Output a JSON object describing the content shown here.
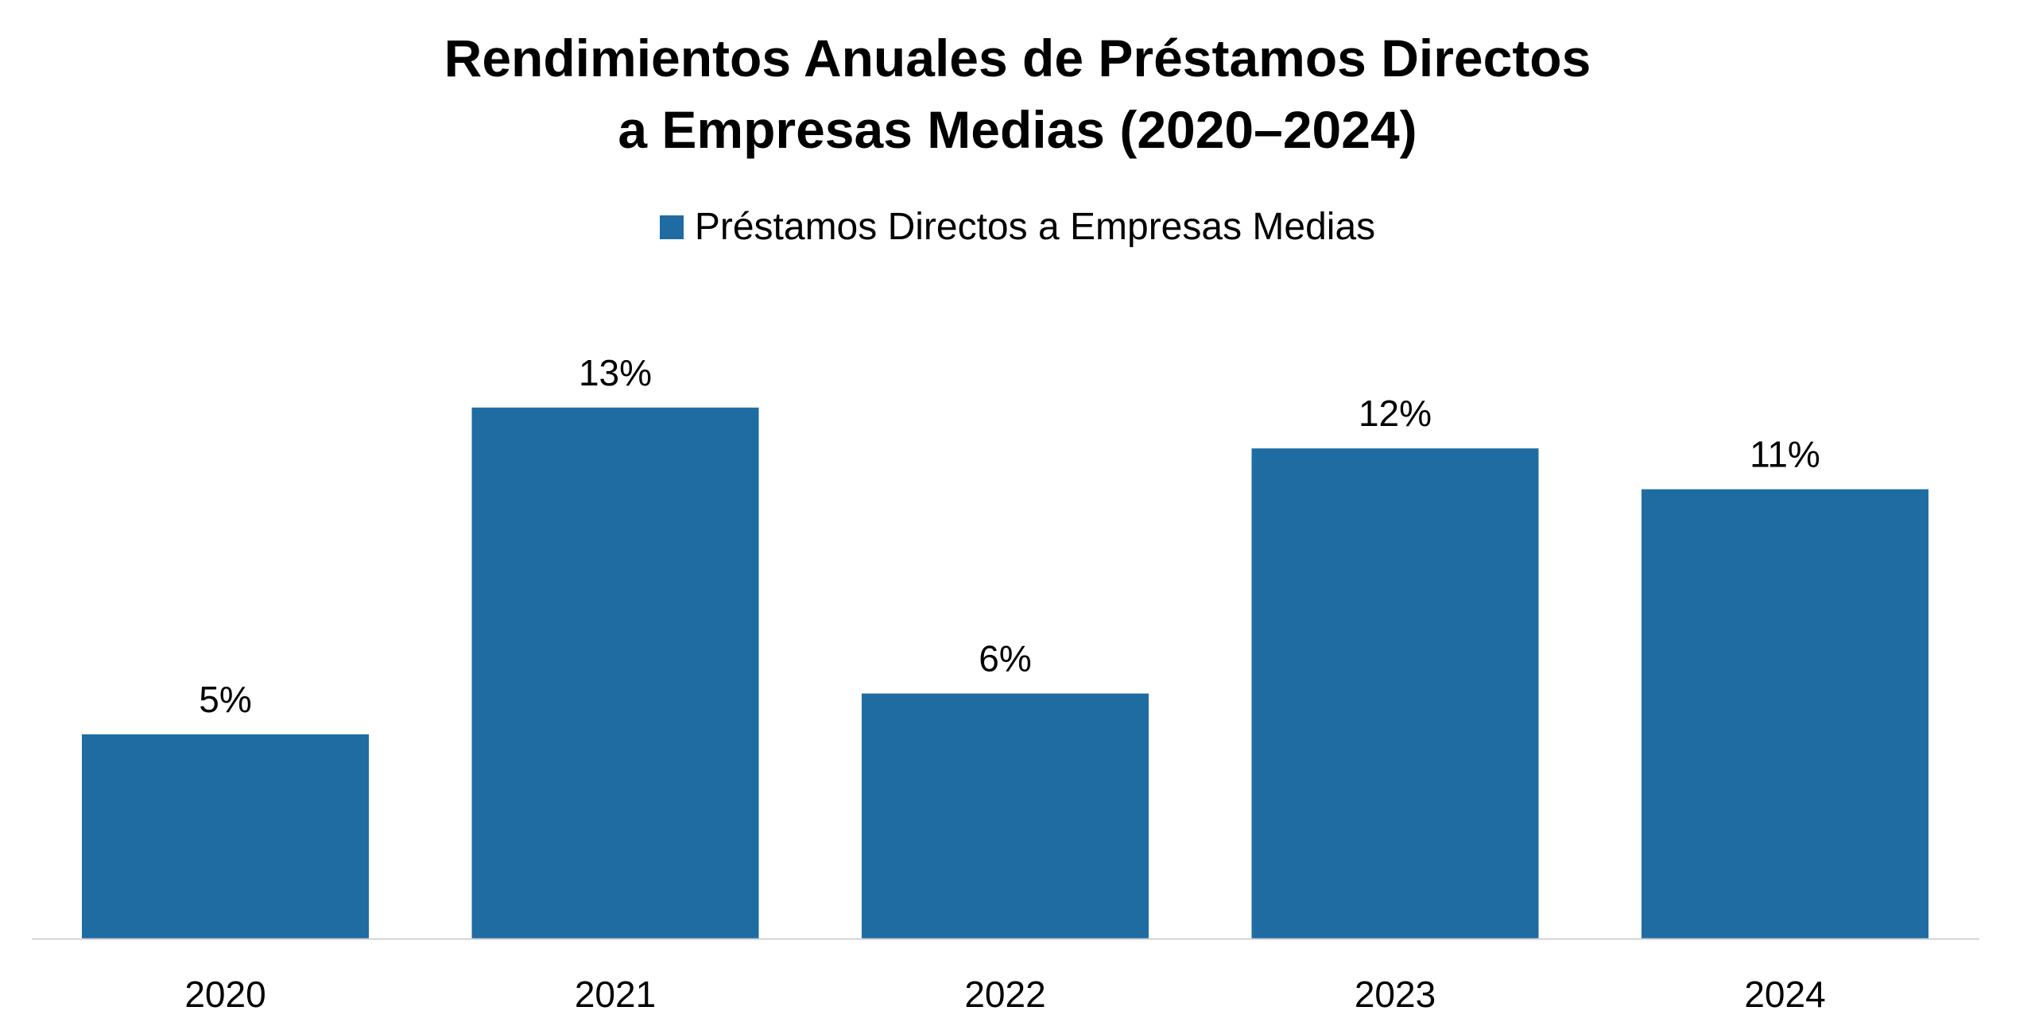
{
  "chart_data": {
    "type": "bar",
    "title_lines": [
      "Rendimientos Anuales de Préstamos Directos",
      "a Empresas Medias (2020–2024)"
    ],
    "categories": [
      "2020",
      "2021",
      "2022",
      "2023",
      "2024"
    ],
    "series": [
      {
        "name": "Préstamos Directos a Empresas Medias",
        "values": [
          5,
          13,
          6,
          12,
          11
        ],
        "color": "#1f6ca3"
      }
    ],
    "data_labels": [
      "5%",
      "13%",
      "6%",
      "12%",
      "11%"
    ],
    "value_unit": "%",
    "legend_position": "top",
    "grid": false,
    "ylim": [
      0,
      14
    ]
  }
}
